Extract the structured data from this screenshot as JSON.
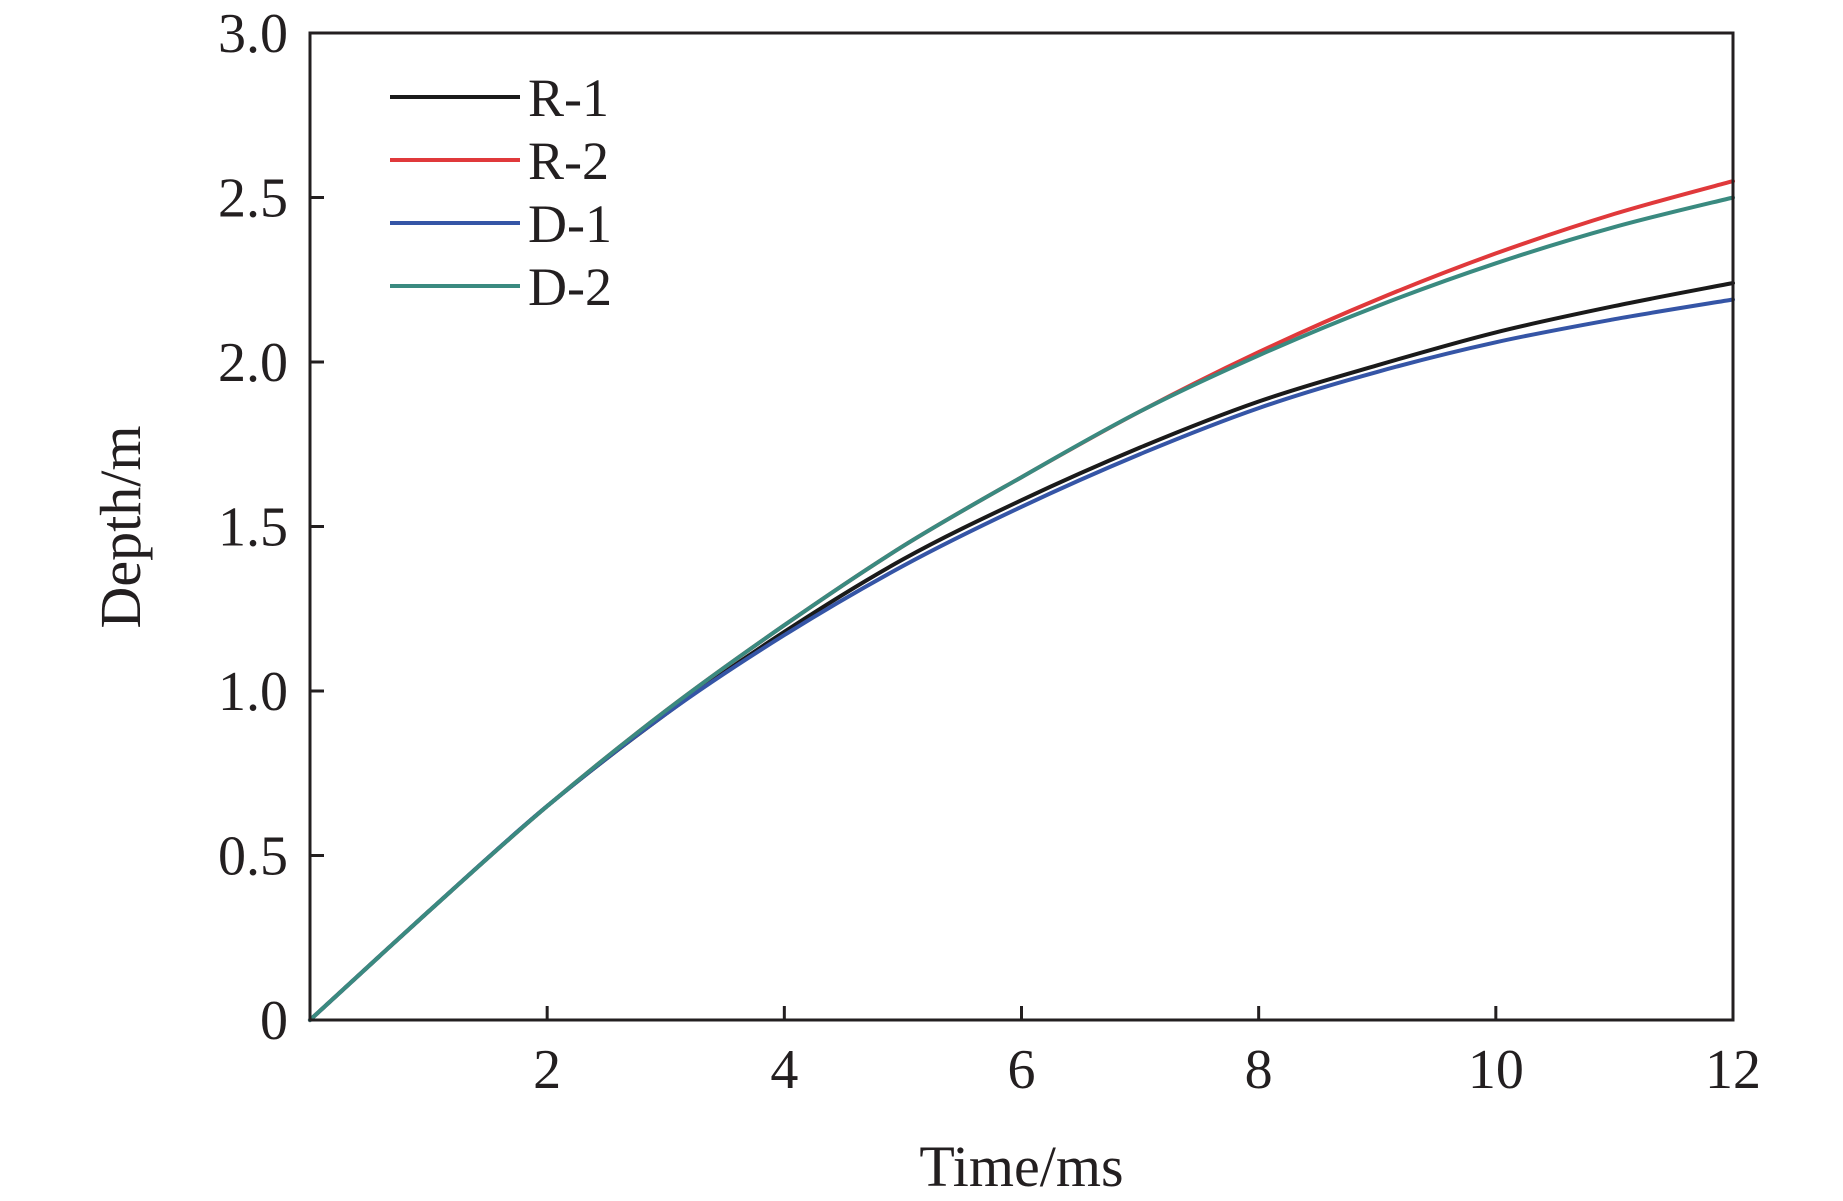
{
  "chart_data": {
    "type": "line",
    "title": "",
    "xlabel": "Time/ms",
    "ylabel": "Depth/m",
    "xlim": [
      0,
      12
    ],
    "ylim": [
      0,
      3.0
    ],
    "xticks": [
      2,
      4,
      6,
      8,
      10,
      12
    ],
    "xtick_labels": [
      "2",
      "4",
      "6",
      "8",
      "10",
      "12"
    ],
    "yticks": [
      0,
      0.5,
      1.0,
      1.5,
      2.0,
      2.5,
      3.0
    ],
    "ytick_labels": [
      "0",
      "0.5",
      "1.0",
      "1.5",
      "2.0",
      "2.5",
      "3.0"
    ],
    "grid": false,
    "legend_position": "top-left",
    "x": [
      0,
      1,
      2,
      3,
      4,
      5,
      6,
      7,
      8,
      9,
      10,
      11,
      12
    ],
    "series": [
      {
        "name": "R-1",
        "color": "#1a1a1a",
        "values": [
          0,
          0.33,
          0.65,
          0.93,
          1.18,
          1.4,
          1.58,
          1.74,
          1.88,
          1.99,
          2.09,
          2.17,
          2.24
        ]
      },
      {
        "name": "R-2",
        "color": "#e0393b",
        "values": [
          0,
          0.33,
          0.65,
          0.94,
          1.2,
          1.44,
          1.65,
          1.85,
          2.03,
          2.19,
          2.33,
          2.45,
          2.55
        ]
      },
      {
        "name": "D-1",
        "color": "#3555a6",
        "values": [
          0,
          0.33,
          0.65,
          0.93,
          1.17,
          1.38,
          1.56,
          1.72,
          1.86,
          1.97,
          2.06,
          2.13,
          2.19
        ]
      },
      {
        "name": "D-2",
        "color": "#3a8a80",
        "values": [
          0,
          0.33,
          0.65,
          0.94,
          1.2,
          1.44,
          1.65,
          1.85,
          2.02,
          2.17,
          2.3,
          2.41,
          2.5
        ]
      }
    ]
  }
}
